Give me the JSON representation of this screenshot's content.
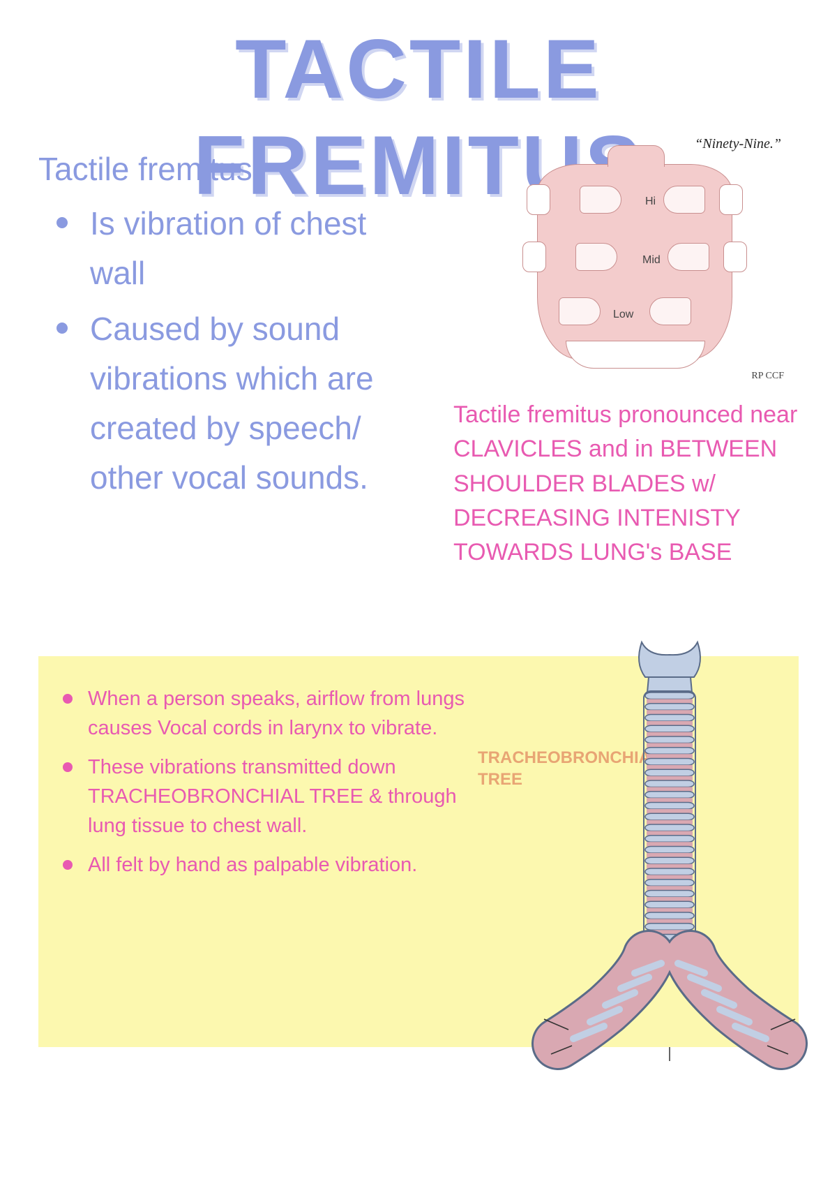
{
  "title": "TACTILE FREMITUS",
  "intro": {
    "lead": "Tactile fremitus",
    "bullets": [
      "Is vibration of chest wall",
      "Caused by sound vibrations which are created by speech/ other vocal sounds."
    ],
    "text_color": "#8a9ae0",
    "bullet_color": "#8a9ae0",
    "font_size_pt": 34
  },
  "back_illustration": {
    "speech_label": "“Ninety-Nine.”",
    "zones": {
      "hi": "Hi",
      "mid": "Mid",
      "low": "Low"
    },
    "skin_color": "#f3cccc",
    "outline_color": "#c98f8f",
    "credit": "RP\nCCF"
  },
  "pink_note": {
    "text": "Tactile fremitus pronounced near CLAVICLES and in BETWEEN SHOULDER BLADES w/ DECREASING INTENISTY TOWARDS LUNG's BASE",
    "color": "#e85ab1",
    "font_size_pt": 25
  },
  "yellow_panel": {
    "background_color": "#fcf8af",
    "bullets": [
      "When a person speaks, airflow from lungs causes Vocal cords in larynx to vibrate.",
      "These vibrations transmitted down TRACHEOBRONCHIAL TREE & through lung tissue to chest wall.",
      "All felt by hand as palpable vibration."
    ],
    "bullet_color": "#e85ab1",
    "font_size_pt": 22
  },
  "trachea": {
    "label": "TRACHEOBRONCHIAL TREE",
    "label_color": "#e8a574",
    "cartilage_color": "#c1cfe4",
    "gap_color": "#d9a8b2",
    "outline_color": "#5a6b88"
  },
  "colors": {
    "title": "#8a9ae0",
    "title_shadow": "#d0d6f2",
    "body_bg": "#ffffff"
  }
}
